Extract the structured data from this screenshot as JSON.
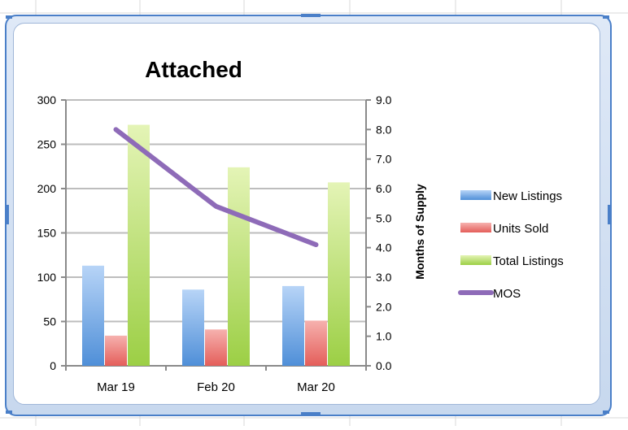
{
  "chart_data": {
    "type": "bar",
    "title": "Attached",
    "categories": [
      "Mar 19",
      "Feb 20",
      "Mar 20"
    ],
    "series": [
      {
        "name": "New Listings",
        "kind": "bar",
        "axis": "left",
        "values": [
          113,
          86,
          90
        ],
        "color": "#6fa3e2"
      },
      {
        "name": "Units Sold",
        "kind": "bar",
        "axis": "left",
        "values": [
          34,
          41,
          51
        ],
        "color": "#ec7d7b"
      },
      {
        "name": "Total Listings",
        "kind": "bar",
        "axis": "left",
        "values": [
          272,
          224,
          207
        ],
        "color": "#b5dc6c"
      },
      {
        "name": "MOS",
        "kind": "line",
        "axis": "right",
        "values": [
          8.0,
          5.4,
          4.1
        ],
        "color": "#8e6bb8"
      }
    ],
    "y_left": {
      "min": 0,
      "max": 300,
      "ticks": [
        "300",
        "250",
        "200",
        "150",
        "100",
        "50",
        "0"
      ],
      "label": ""
    },
    "y_right": {
      "min": 0,
      "max": 9,
      "ticks": [
        "9.0",
        "8.0",
        "7.0",
        "6.0",
        "5.0",
        "4.0",
        "3.0",
        "2.0",
        "1.0",
        "0.0"
      ],
      "label": "Months of Supply"
    },
    "grid": true,
    "legend_position": "right"
  }
}
